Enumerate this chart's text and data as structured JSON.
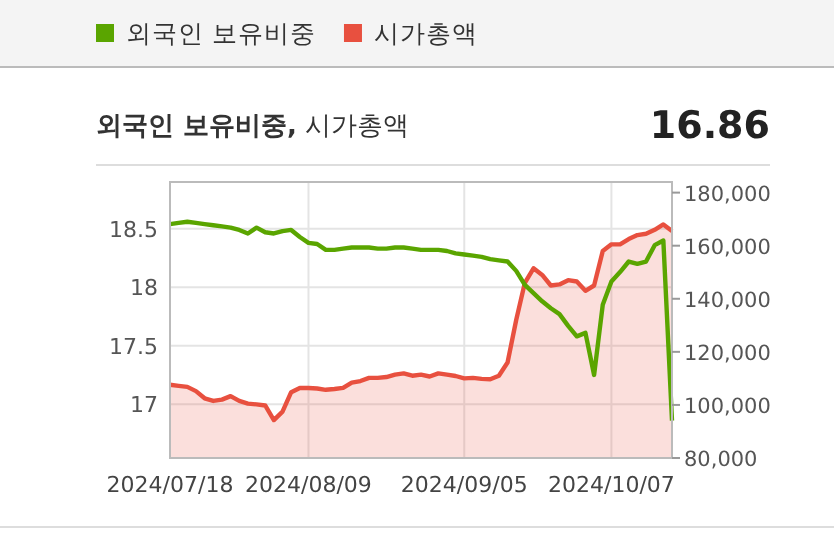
{
  "chart_data": {
    "type": "line",
    "title": "**외국인 보유비중,** 시가총액",
    "annotations": [
      "16.86"
    ],
    "categories": [
      "2024/07/18",
      null,
      null,
      null,
      null,
      null,
      null,
      null,
      null,
      null,
      null,
      null,
      null,
      null,
      null,
      null,
      "2024/08/09",
      null,
      null,
      null,
      null,
      null,
      null,
      null,
      null,
      null,
      null,
      null,
      null,
      null,
      null,
      null,
      null,
      null,
      "2024/09/05",
      null,
      null,
      null,
      null,
      null,
      null,
      null,
      null,
      null,
      null,
      null,
      null,
      null,
      null,
      null,
      null,
      "2024/10/07",
      null,
      null,
      null,
      null,
      null,
      null,
      null
    ],
    "series": [
      {
        "name": "외국인 보유비중",
        "color": "#5aa500",
        "type": "line",
        "values": [
          18.54,
          18.55,
          18.56,
          18.55,
          18.54,
          18.53,
          18.52,
          18.51,
          18.49,
          18.46,
          18.51,
          18.47,
          18.46,
          18.48,
          18.49,
          18.43,
          18.38,
          18.37,
          18.32,
          18.32,
          18.33,
          18.34,
          18.34,
          18.34,
          18.33,
          18.33,
          18.34,
          18.34,
          18.33,
          18.32,
          18.32,
          18.32,
          18.31,
          18.29,
          18.28,
          18.27,
          18.26,
          18.24,
          18.23,
          18.22,
          18.14,
          18.02,
          17.95,
          17.88,
          17.82,
          17.77,
          17.67,
          17.58,
          17.61,
          17.25,
          17.85,
          18.05,
          18.13,
          18.22,
          18.2,
          18.22,
          18.36,
          18.4,
          16.86
        ]
      },
      {
        "name": "시가총액",
        "color": "#e8503f",
        "type": "area",
        "axis": "y2",
        "values": [
          107600,
          107200,
          106800,
          105200,
          102500,
          101500,
          102000,
          103300,
          101500,
          100500,
          100200,
          99800,
          94300,
          97500,
          104800,
          106400,
          106400,
          106200,
          105700,
          106000,
          106400,
          108400,
          109000,
          110200,
          110200,
          110500,
          111400,
          111900,
          111000,
          111400,
          110700,
          111900,
          111400,
          110900,
          110000,
          110200,
          109800,
          109700,
          111000,
          116000,
          132000,
          146000,
          151500,
          149000,
          145000,
          145400,
          147000,
          146500,
          143000,
          145000,
          158000,
          160500,
          160500,
          162500,
          164000,
          164500,
          166000,
          168000,
          165500
        ]
      }
    ],
    "ylim": [
      16.54,
      18.9
    ],
    "yticks": [
      17,
      17.5,
      18,
      18.5
    ],
    "y2lim": [
      80000,
      184000
    ],
    "y2ticks": [
      {
        "value": 80000,
        "label": "80,000"
      },
      {
        "value": 100000,
        "label": "100,000"
      },
      {
        "value": 120000,
        "label": "120,000"
      },
      {
        "value": 140000,
        "label": "140,000"
      },
      {
        "value": 160000,
        "label": "160,000"
      },
      {
        "value": 180000,
        "label": "180,000"
      }
    ],
    "grid": true,
    "legend": "top left"
  }
}
